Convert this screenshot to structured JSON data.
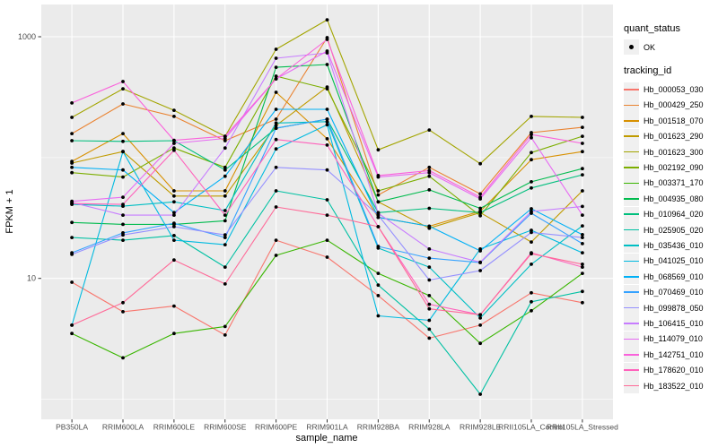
{
  "figure": {
    "panel_color": "#EBEBEB",
    "grid_color": "#FFFFFF",
    "axis_text_color": "#4D4D4D",
    "tick_color": "#333333",
    "point_color": "#000000"
  },
  "legend": {
    "quant_status": {
      "title": "quant_status",
      "items": [
        {
          "label": "OK",
          "symbol": "black-point"
        }
      ]
    },
    "tracking": {
      "title": "tracking_id"
    }
  },
  "chart_data": {
    "type": "line",
    "title": "",
    "xlabel": "sample_name",
    "ylabel": "FPKM + 1",
    "y_scale": "log10",
    "ylim": [
      0.7,
      1850
    ],
    "grid": "major-and-minor",
    "legend_position": "right",
    "yticks": [
      {
        "label": "1000",
        "value": 1000
      },
      {
        "label": "10",
        "value": 10
      }
    ],
    "y_minor": [
      100,
      1
    ],
    "categories": [
      "PB350LA",
      "RRIM600LA",
      "RRIM600LE",
      "RRIM600SE",
      "RRIM600PE",
      "RRIM901LA",
      "RRIM928BA",
      "RRIM928LA",
      "RRIM928LE",
      "RRII105LA_Control",
      "RRII105LA_Stressed"
    ],
    "series": [
      {
        "name": "Hb_000053_030",
        "color": "#F8766D",
        "values": [
          9.3,
          5.3,
          5.9,
          3.4,
          20.7,
          15.0,
          7.2,
          3.2,
          4.1,
          7.6,
          6.3
        ]
      },
      {
        "name": "Hb_000429_250",
        "color": "#EA8331",
        "values": [
          158,
          278,
          219,
          138,
          208,
          983,
          49,
          83,
          50,
          161,
          178
        ]
      },
      {
        "name": "Hb_001518_070",
        "color": "#D89000",
        "values": [
          93,
          158,
          53,
          53,
          347,
          143,
          32,
          27,
          36,
          96,
          112
        ]
      },
      {
        "name": "Hb_001623_290",
        "color": "#C09B00",
        "values": [
          90,
          112,
          48,
          48,
          184,
          384,
          43,
          26,
          35,
          20,
          53
        ]
      },
      {
        "name": "Hb_001623_300",
        "color": "#A3A500",
        "values": [
          215,
          371,
          246,
          150,
          787,
          1380,
          116,
          169,
          89,
          219,
          215
        ]
      },
      {
        "name": "Hb_002192_090",
        "color": "#7CAE00",
        "values": [
          75,
          69,
          120,
          83,
          472,
          371,
          53,
          70,
          33,
          110,
          150
        ]
      },
      {
        "name": "Hb_003371_170",
        "color": "#39B600",
        "values": [
          3.5,
          2.2,
          3.5,
          4.0,
          15.5,
          20.7,
          11.0,
          7.2,
          2.9,
          5.4,
          11.0
        ]
      },
      {
        "name": "Hb_004935_080",
        "color": "#00BB4E",
        "values": [
          29,
          28,
          28,
          30,
          559,
          589,
          43,
          54,
          38,
          63,
          81
        ]
      },
      {
        "name": "Hb_010964_020",
        "color": "#00BF7D",
        "values": [
          138,
          136,
          138,
          79,
          175,
          208,
          35,
          38,
          35,
          56,
          72
        ]
      },
      {
        "name": "Hb_025905_020",
        "color": "#00C1A3",
        "values": [
          21.8,
          20.7,
          22.6,
          12.4,
          53,
          44.7,
          8.8,
          3.8,
          1.1,
          6.4,
          7.8
        ]
      },
      {
        "name": "Hb_035436_010",
        "color": "#00BFC4",
        "values": [
          41,
          39.6,
          43,
          36.4,
          193,
          198,
          17.8,
          12.4,
          4.7,
          13.1,
          27.2
        ]
      },
      {
        "name": "Hb_041025_010",
        "color": "#00BAE0",
        "values": [
          4.1,
          112,
          20.7,
          19,
          118,
          187,
          4.9,
          4.5,
          17.5,
          25,
          16.3
        ]
      },
      {
        "name": "Hb_068569_010",
        "color": "#00B0F6",
        "values": [
          83,
          79,
          35,
          70,
          251,
          251,
          32,
          27,
          16.9,
          37.7,
          23
        ]
      },
      {
        "name": "Hb_070469_010",
        "color": "#35A2FF",
        "values": [
          16.3,
          23.8,
          28.6,
          21.8,
          175,
          208,
          18.4,
          14.7,
          13.5,
          34.6,
          19.4
        ]
      },
      {
        "name": "Hb_099878_050",
        "color": "#9590FF",
        "values": [
          15.8,
          22.9,
          26.8,
          22.9,
          83,
          79,
          33.4,
          9.7,
          11.6,
          24,
          21.8
        ]
      },
      {
        "name": "Hb_106415_010",
        "color": "#C77CFF",
        "values": [
          42.5,
          33.4,
          33.4,
          120,
          664,
          735,
          34.6,
          17.5,
          13.6,
          35.8,
          39.4
        ]
      },
      {
        "name": "Hb_114079_010",
        "color": "#E76BF3",
        "values": [
          43.4,
          47,
          131,
          144,
          448,
          761,
          69,
          75,
          45.5,
          146,
          33.4
        ]
      },
      {
        "name": "Hb_142751_010",
        "color": "#FA62DB",
        "values": [
          283,
          426,
          139,
          150,
          448,
          950,
          71,
          78,
          47,
          155,
          131
        ]
      },
      {
        "name": "Hb_178620_010",
        "color": "#FF62BC",
        "values": [
          41.6,
          41,
          115,
          33.4,
          141,
          127,
          26.8,
          6.1,
          5.0,
          16.3,
          12.4
        ]
      },
      {
        "name": "Hb_183522_010",
        "color": "#FF6A98",
        "values": [
          4.1,
          6.3,
          14.2,
          9.0,
          39,
          33.4,
          26.8,
          5.6,
          5.0,
          16.0,
          13.1
        ]
      }
    ]
  }
}
